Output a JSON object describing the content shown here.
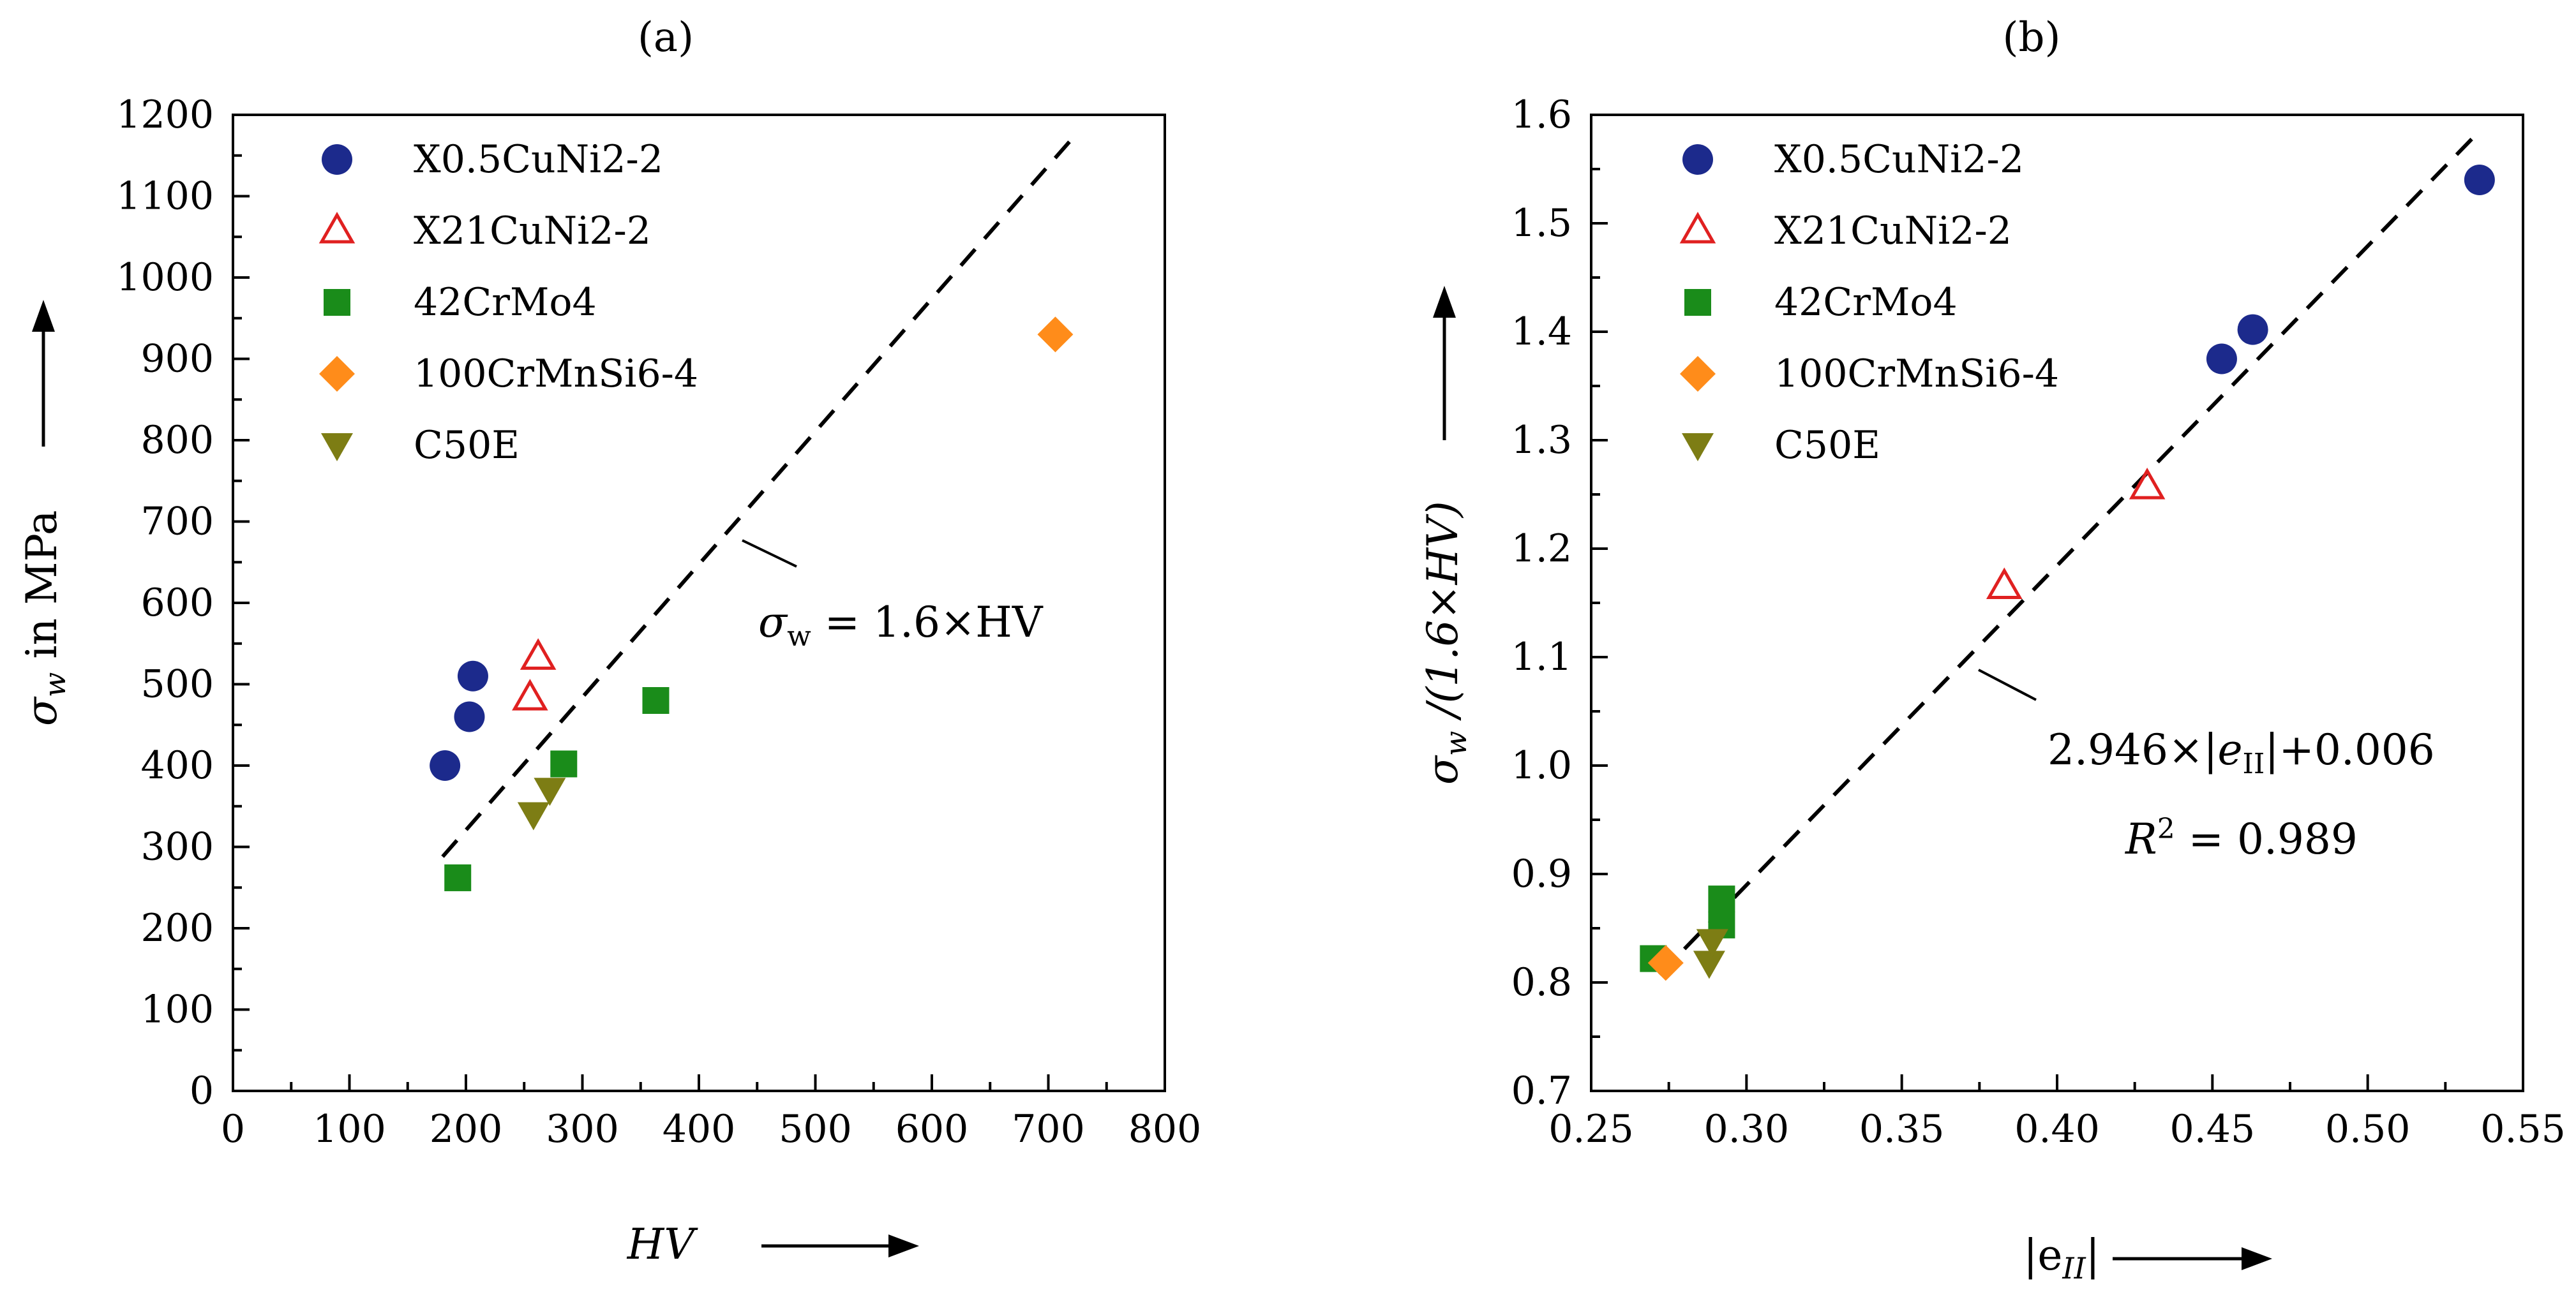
{
  "colors": {
    "navy": "#1c2a8c",
    "red": "#e02020",
    "green": "#1a8c1a",
    "orange": "#ff8c1a",
    "olive": "#7d7d14"
  },
  "chart_data": [
    {
      "type": "scatter",
      "panel_label": "(a)",
      "xlabel": "HV",
      "ylabel_sym": "σ",
      "ylabel_sub": "w",
      "ylabel_rest": " in MPa",
      "xlim": [
        0,
        800
      ],
      "ylim": [
        0,
        1200
      ],
      "xticks": [
        0,
        100,
        200,
        300,
        400,
        500,
        600,
        700,
        800
      ],
      "yticks": [
        0,
        100,
        200,
        300,
        400,
        500,
        600,
        700,
        800,
        900,
        1000,
        1100,
        1200
      ],
      "series": [
        {
          "name": "X0.5CuNi2-2",
          "marker": "circle",
          "color": "#1c2a8c",
          "points": [
            [
              182,
              400
            ],
            [
              203,
              460
            ],
            [
              206,
              510
            ]
          ]
        },
        {
          "name": "X21CuNi2-2",
          "marker": "triangle-open",
          "color": "#e02020",
          "points": [
            [
              255,
              483
            ],
            [
              262,
              533
            ]
          ]
        },
        {
          "name": "42CrMo4",
          "marker": "square",
          "color": "#1a8c1a",
          "points": [
            [
              193,
              262
            ],
            [
              284,
              402
            ],
            [
              363,
              480
            ]
          ]
        },
        {
          "name": "100CrMnSi6-4",
          "marker": "diamond",
          "color": "#ff8c1a",
          "points": [
            [
              706,
              930
            ]
          ]
        },
        {
          "name": "C50E",
          "marker": "triangle-down",
          "color": "#7d7d14",
          "points": [
            [
              258,
              340
            ],
            [
              272,
              370
            ]
          ]
        }
      ],
      "fit_line": {
        "points": [
          [
            180,
            288
          ],
          [
            720,
            1170
          ]
        ]
      },
      "annotation": {
        "sym": "σ",
        "sub": "w",
        "rest": " = 1.6×HV"
      }
    },
    {
      "type": "scatter",
      "panel_label": "(b)",
      "xlabel": "|e",
      "xlabel_sub": "II",
      "xlabel_close": "|",
      "ylabel_sym": "σ",
      "ylabel_sub": "w",
      "ylabel_rest": " /(1.6×HV)",
      "xlim": [
        0.25,
        0.55
      ],
      "ylim": [
        0.7,
        1.6
      ],
      "xticks": [
        "0.25",
        "0.30",
        "0.35",
        "0.40",
        "0.45",
        "0.50",
        "0.55"
      ],
      "yticks": [
        "0.7",
        "0.8",
        "0.9",
        "1.0",
        "1.1",
        "1.2",
        "1.3",
        "1.4",
        "1.5",
        "1.6"
      ],
      "series": [
        {
          "name": "X0.5CuNi2-2",
          "marker": "circle",
          "color": "#1c2a8c",
          "points": [
            [
              0.453,
              1.375
            ],
            [
              0.463,
              1.402
            ],
            [
              0.536,
              1.54
            ]
          ]
        },
        {
          "name": "X21CuNi2-2",
          "marker": "triangle-open",
          "color": "#e02020",
          "points": [
            [
              0.383,
              1.165
            ],
            [
              0.429,
              1.257
            ]
          ]
        },
        {
          "name": "42CrMo4",
          "marker": "square",
          "color": "#1a8c1a",
          "points": [
            [
              0.27,
              0.822
            ],
            [
              0.292,
              0.877
            ],
            [
              0.292,
              0.853
            ]
          ]
        },
        {
          "name": "100CrMnSi6-4",
          "marker": "diamond",
          "color": "#ff8c1a",
          "points": [
            [
              0.274,
              0.818
            ]
          ]
        },
        {
          "name": "C50E",
          "marker": "triangle-down",
          "color": "#7d7d14",
          "points": [
            [
              0.288,
              0.818
            ],
            [
              0.289,
              0.838
            ]
          ]
        }
      ],
      "fit_line": {
        "slope": 2.946,
        "intercept": 0.006,
        "x_range": [
          0.272,
          0.535
        ]
      },
      "annotation_line1_pre": "2.946×|",
      "annotation_line1_var": "e",
      "annotation_line1_sub": "II",
      "annotation_line1_post": "|+0.006",
      "annotation_line2_var": "R",
      "annotation_line2_sup": "2",
      "annotation_line2_rest": " = 0.989"
    }
  ]
}
